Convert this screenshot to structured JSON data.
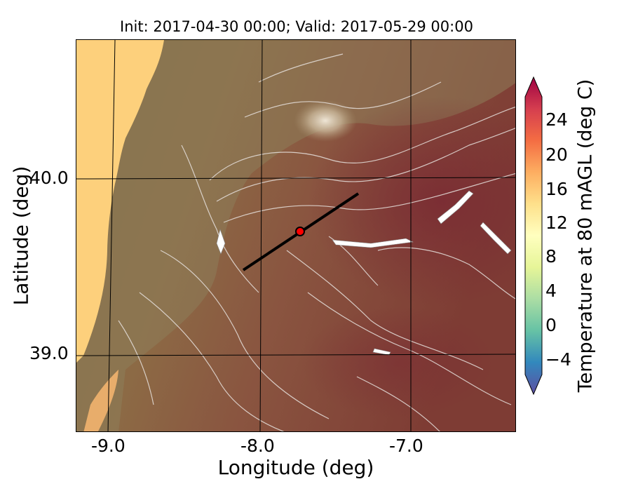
{
  "title": "Init: 2017-04-30 00:00; Valid: 2017-05-29 00:00",
  "x_axis": {
    "label": "Longitude (deg)",
    "ticks": [
      "-9.0",
      "-8.0",
      "-7.0"
    ]
  },
  "y_axis": {
    "label": "Latitude (deg)",
    "ticks": [
      "40.0",
      "39.0"
    ]
  },
  "colorbar": {
    "label": "Temperature at 80 mAGL (deg C)",
    "ticks": [
      "24",
      "20",
      "16",
      "12",
      "8",
      "4",
      "0",
      "−4"
    ],
    "extend": "both",
    "colormap": "Spectral_r",
    "colors": [
      "#5e4fa2",
      "#3288bd",
      "#66c2a5",
      "#abdda4",
      "#e6f598",
      "#ffffbf",
      "#fee08b",
      "#fdae61",
      "#f46d43",
      "#d53e4f",
      "#9e0142"
    ]
  },
  "map": {
    "ocean_color": "#fdd07c",
    "overlay": "terrain hillshade with white elevation contours",
    "cross_section": {
      "start": [
        -8.1,
        39.5
      ],
      "end": [
        -7.35,
        39.9
      ],
      "marker": [
        -7.75,
        39.7
      ],
      "marker_color": "#ff0000"
    }
  }
}
